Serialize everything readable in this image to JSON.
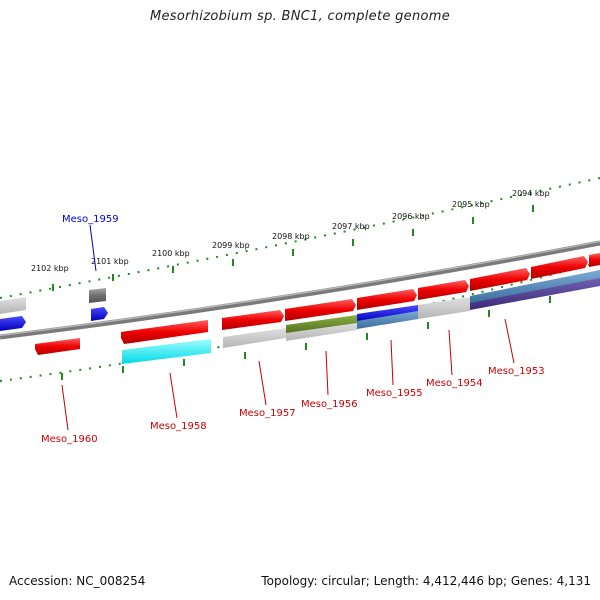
{
  "title": "Mesorhizobium sp. BNC1, complete genome",
  "footer": {
    "accession": "Accession: NC_008254",
    "topology": "Topology: circular; Length: 4,412,446 bp; Genes: 4,131"
  },
  "kbp_ticks": [
    "2102 kbp",
    "2101 kbp",
    "2100 kbp",
    "2099 kbp",
    "2098 kbp",
    "2097 kbp",
    "2096 kbp",
    "2095 kbp",
    "2094 kbp"
  ],
  "gene_labels": [
    "Meso_1959",
    "Meso_1960",
    "Meso_1958",
    "Meso_1957",
    "Meso_1956",
    "Meso_1955",
    "Meso_1954",
    "Meso_1953"
  ],
  "colors": {
    "gene_red": "#e00000",
    "backbone": "#888888",
    "ruler": "#228822",
    "cyan": "#00e0e0",
    "olive": "#6b8e23",
    "blue": "#0000dd",
    "steel": "#4a7fb0",
    "indigo": "#4b3a8a",
    "label_red": "#cc0000",
    "label_blue": "#0000cc"
  }
}
